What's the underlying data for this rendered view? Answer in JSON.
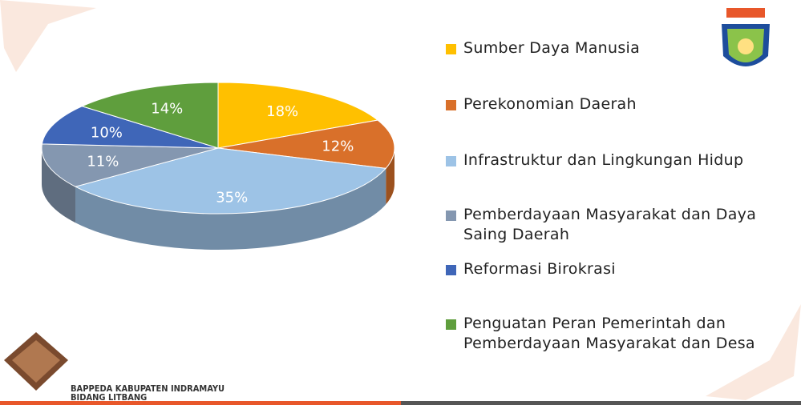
{
  "chart_data": {
    "type": "pie",
    "categories": [
      "Sumber Daya Manusia",
      "Perekonomian Daerah",
      "Infrastruktur dan Lingkungan Hidup",
      "Pemberdayaan Masyarakat dan Daya Saing Daerah",
      "Reformasi Birokrasi",
      "Penguatan Peran Pemerintah dan Pemberdayaan Masyarakat dan Desa"
    ],
    "values": [
      18,
      12,
      35,
      11,
      10,
      14
    ],
    "value_labels": [
      "18%",
      "12%",
      "35%",
      "11%",
      "10%",
      "14%"
    ],
    "colors": [
      "#ffc000",
      "#d9702a",
      "#9dc3e6",
      "#8497b0",
      "#3f66b8",
      "#5f9e3d"
    ],
    "legend": "right"
  },
  "footer": {
    "line1": "BAPPEDA KABUPATEN INDRAMAYU",
    "line2": "BIDANG LITBANG"
  }
}
